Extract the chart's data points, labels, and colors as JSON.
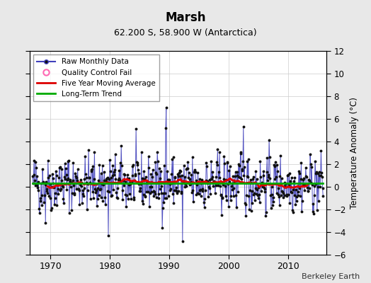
{
  "title": "Marsh",
  "subtitle": "62.200 S, 58.900 W (Antarctica)",
  "ylabel": "Temperature Anomaly (°C)",
  "credit": "Berkeley Earth",
  "ylim": [
    -6,
    12
  ],
  "yticks": [
    -6,
    -4,
    -2,
    0,
    2,
    4,
    6,
    8,
    10,
    12
  ],
  "xlim": [
    1966.5,
    2016.5
  ],
  "xticks": [
    1970,
    1980,
    1990,
    2000,
    2010
  ],
  "bg_color": "#e8e8e8",
  "plot_bg_color": "#ffffff",
  "raw_line_color": "#4040bb",
  "raw_marker_color": "#111111",
  "moving_avg_color": "#dd0000",
  "trend_color": "#00aa00",
  "qc_fail_color": "#ff69b4",
  "legend_loc": "upper left",
  "seed": 42,
  "start_year": 1967.0,
  "end_year": 2015.92
}
